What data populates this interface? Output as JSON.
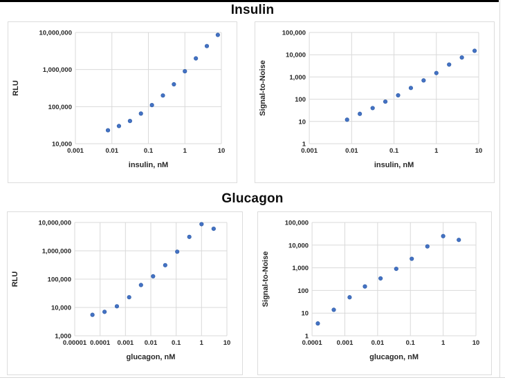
{
  "sections": [
    {
      "title": "Insulin"
    },
    {
      "title": "Glucagon"
    }
  ],
  "colors": {
    "point_fill": "#4472C4",
    "point_stroke": "#3663AC",
    "grid": "#d9d9d9",
    "axis_text": "#262626",
    "panel_border": "#dcdcdc",
    "top_bar": "#000000"
  },
  "chart_data": [
    {
      "id": "insulin-rlu",
      "type": "scatter",
      "section": "Insulin",
      "title": "",
      "xlabel": "insulin, nM",
      "ylabel": "RLU",
      "x_scale": "log",
      "y_scale": "log",
      "xlim": [
        0.001,
        10
      ],
      "ylim": [
        10000,
        10000000
      ],
      "grid": true,
      "x_ticks": [
        "0.001",
        "0.01",
        "0.1",
        "1",
        "10"
      ],
      "y_ticks": [
        "10,000",
        "100,000",
        "1,000,000",
        "10,000,000"
      ],
      "points": [
        [
          0.0078,
          23000
        ],
        [
          0.0156,
          30000
        ],
        [
          0.0313,
          41000
        ],
        [
          0.0625,
          65000
        ],
        [
          0.125,
          110000
        ],
        [
          0.25,
          200000
        ],
        [
          0.5,
          400000
        ],
        [
          1,
          900000
        ],
        [
          2,
          2000000
        ],
        [
          4,
          4300000
        ],
        [
          8,
          8600000
        ]
      ]
    },
    {
      "id": "insulin-signal-to-noise",
      "type": "scatter",
      "section": "Insulin",
      "title": "",
      "xlabel": "insulin, nM",
      "ylabel": "Signal-to-Noise",
      "x_scale": "log",
      "y_scale": "log",
      "xlim": [
        0.001,
        10
      ],
      "ylim": [
        1,
        100000
      ],
      "grid": true,
      "x_ticks": [
        "0.001",
        "0.01",
        "0.1",
        "1",
        "10"
      ],
      "y_ticks": [
        "1",
        "10",
        "100",
        "1,000",
        "10,000",
        "100,000"
      ],
      "points": [
        [
          0.0078,
          12
        ],
        [
          0.0156,
          22
        ],
        [
          0.0313,
          40
        ],
        [
          0.0625,
          78
        ],
        [
          0.125,
          150
        ],
        [
          0.25,
          320
        ],
        [
          0.5,
          700
        ],
        [
          1,
          1500
        ],
        [
          2,
          3600
        ],
        [
          4,
          7500
        ],
        [
          8,
          15000
        ]
      ]
    },
    {
      "id": "glucagon-rlu",
      "type": "scatter",
      "section": "Glucagon",
      "title": "",
      "xlabel": "glucagon, nM",
      "ylabel": "RLU",
      "x_scale": "log",
      "y_scale": "log",
      "xlim": [
        1e-05,
        10
      ],
      "ylim": [
        1000,
        10000000
      ],
      "grid": true,
      "x_ticks": [
        "0.00001",
        "0.0001",
        "0.001",
        "0.01",
        "0.1",
        "1",
        "10"
      ],
      "y_ticks": [
        "1,000",
        "10,000",
        "100,000",
        "1,000,000",
        "10,000,000"
      ],
      "points": [
        [
          5e-05,
          5500
        ],
        [
          0.00015,
          7000
        ],
        [
          0.00046,
          11000
        ],
        [
          0.0014,
          23000
        ],
        [
          0.0041,
          62000
        ],
        [
          0.0123,
          126000
        ],
        [
          0.037,
          310000
        ],
        [
          0.11,
          930000
        ],
        [
          0.33,
          3100000
        ],
        [
          1,
          8700000
        ],
        [
          3,
          6000000
        ]
      ]
    },
    {
      "id": "glucagon-signal-to-noise",
      "type": "scatter",
      "section": "Glucagon",
      "title": "",
      "xlabel": "glucagon, nM",
      "ylabel": "Signal-to-Noise",
      "x_scale": "log",
      "y_scale": "log",
      "xlim": [
        0.0001,
        10
      ],
      "ylim": [
        1,
        100000
      ],
      "grid": true,
      "x_ticks": [
        "0.0001",
        "0.001",
        "0.01",
        "0.1",
        "1",
        "10"
      ],
      "y_ticks": [
        "1",
        "10",
        "100",
        "1,000",
        "10,000",
        "100,000"
      ],
      "points": [
        [
          0.00015,
          3.5
        ],
        [
          0.00046,
          14
        ],
        [
          0.0014,
          50
        ],
        [
          0.0041,
          150
        ],
        [
          0.0123,
          340
        ],
        [
          0.037,
          900
        ],
        [
          0.11,
          2500
        ],
        [
          0.33,
          8800
        ],
        [
          1,
          25000
        ],
        [
          3,
          17000
        ]
      ]
    }
  ]
}
